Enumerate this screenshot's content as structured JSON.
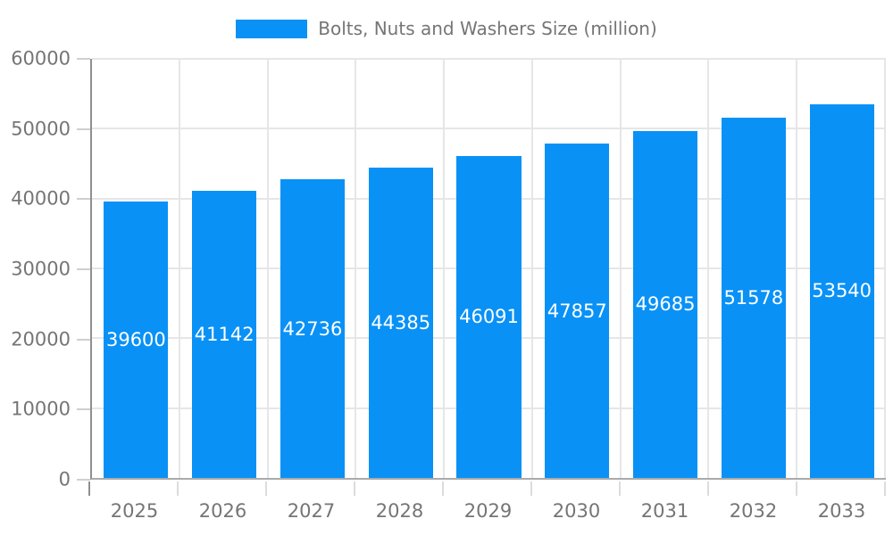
{
  "chart_data": {
    "type": "bar",
    "title": "Bolts, Nuts and Washers Size (million)",
    "categories": [
      "2025",
      "2026",
      "2027",
      "2028",
      "2029",
      "2030",
      "2031",
      "2032",
      "2033"
    ],
    "values": [
      39600,
      41142,
      42736,
      44385,
      46091,
      47857,
      49685,
      51578,
      53540
    ],
    "xlabel": "",
    "ylabel": "",
    "ylim": [
      0,
      60000
    ],
    "yticks": [
      0,
      10000,
      20000,
      30000,
      40000,
      50000,
      60000
    ],
    "grid": true,
    "legend_position": "top",
    "legend_label": "Bolts, Nuts and Washers Size (million)",
    "bar_color": "#0991f6",
    "bar_label_color": "#ffffff",
    "axis_text_color": "#757575"
  }
}
